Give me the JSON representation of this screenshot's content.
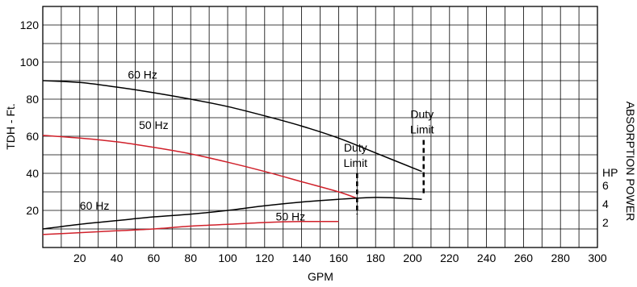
{
  "chart_data": {
    "type": "line",
    "xlabel": "GPM",
    "ylabel": "TDH - Ft.",
    "y2label": "ABSORPTION POWER",
    "y2unit": "HP",
    "xlim": [
      0,
      300
    ],
    "ylim": [
      0,
      130
    ],
    "x_ticks": [
      20,
      40,
      60,
      80,
      100,
      120,
      140,
      160,
      180,
      200,
      220,
      240,
      260,
      280,
      300
    ],
    "y_ticks": [
      20,
      40,
      60,
      80,
      100,
      120
    ],
    "y2_ticks": [
      2,
      4,
      6
    ],
    "grid": true,
    "colors": {
      "60hz": "#000000",
      "50hz": "#d0202a"
    },
    "series": [
      {
        "id": "head-60hz",
        "name": "60 Hz",
        "color": "#000000",
        "x": [
          0,
          20,
          40,
          60,
          80,
          100,
          120,
          140,
          160,
          180,
          205
        ],
        "y": [
          90,
          89,
          86.5,
          83.5,
          80,
          76,
          71,
          65.5,
          59,
          51,
          41
        ]
      },
      {
        "id": "head-50hz",
        "name": "50 Hz",
        "color": "#d0202a",
        "x": [
          0,
          20,
          40,
          60,
          80,
          100,
          120,
          140,
          160,
          170
        ],
        "y": [
          60.5,
          59,
          57,
          54,
          50.5,
          46,
          41,
          35.5,
          30,
          26.5
        ]
      },
      {
        "id": "power-60hz",
        "name": "60 Hz",
        "color": "#000000",
        "x": [
          0,
          20,
          40,
          60,
          80,
          100,
          120,
          140,
          160,
          180,
          195,
          205
        ],
        "y": [
          10,
          12.5,
          14.5,
          16.5,
          18,
          20,
          22.5,
          24.5,
          26,
          27,
          26.5,
          26
        ]
      },
      {
        "id": "power-50hz",
        "name": "50 Hz",
        "color": "#d0202a",
        "x": [
          0,
          20,
          40,
          60,
          80,
          100,
          120,
          140,
          160
        ],
        "y": [
          7,
          8,
          9,
          10,
          11.5,
          12.5,
          13.5,
          14,
          14
        ]
      }
    ],
    "annotations": [
      {
        "id": "label-60hz-head",
        "text": "60 Hz",
        "x": 46,
        "y": 91
      },
      {
        "id": "label-50hz-head",
        "text": "50 Hz",
        "x": 52,
        "y": 64
      },
      {
        "id": "label-60hz-power",
        "text": "60 Hz",
        "x": 20,
        "y": 20.5
      },
      {
        "id": "label-50hz-power",
        "text": "50 Hz",
        "x": 126,
        "y": 14.5
      }
    ],
    "duty_limits": [
      {
        "id": "duty-limit-50hz",
        "lines": [
          "Duty",
          "Limit"
        ],
        "x": 170,
        "y_top": 40,
        "y_bottom": 18
      },
      {
        "id": "duty-limit-60hz",
        "lines": [
          "Duty",
          "Limit"
        ],
        "x": 206,
        "y_top": 58,
        "y_bottom": 28
      }
    ]
  }
}
